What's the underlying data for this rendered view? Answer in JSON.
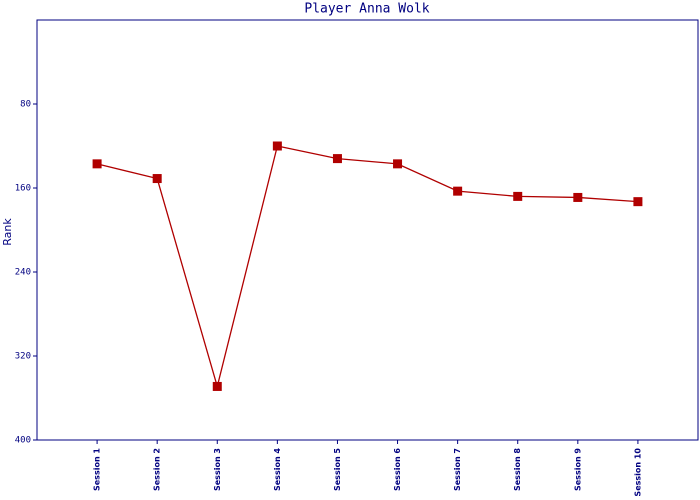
{
  "chart_data": {
    "type": "line",
    "title": "Player Anna Wolk",
    "ylabel": "Rank",
    "categories": [
      "Session 1",
      "Session 2",
      "Session 3",
      "Session 4",
      "Session 5",
      "Session 6",
      "Session 7",
      "Session 8",
      "Session 9",
      "Session 10"
    ],
    "values": [
      137,
      151,
      349,
      120,
      132,
      137,
      163,
      168,
      169,
      173
    ],
    "color": "#b00000",
    "ylim": [
      0,
      400
    ],
    "yticks": [
      80,
      160,
      240,
      320,
      400
    ],
    "y_inverted": true
  }
}
